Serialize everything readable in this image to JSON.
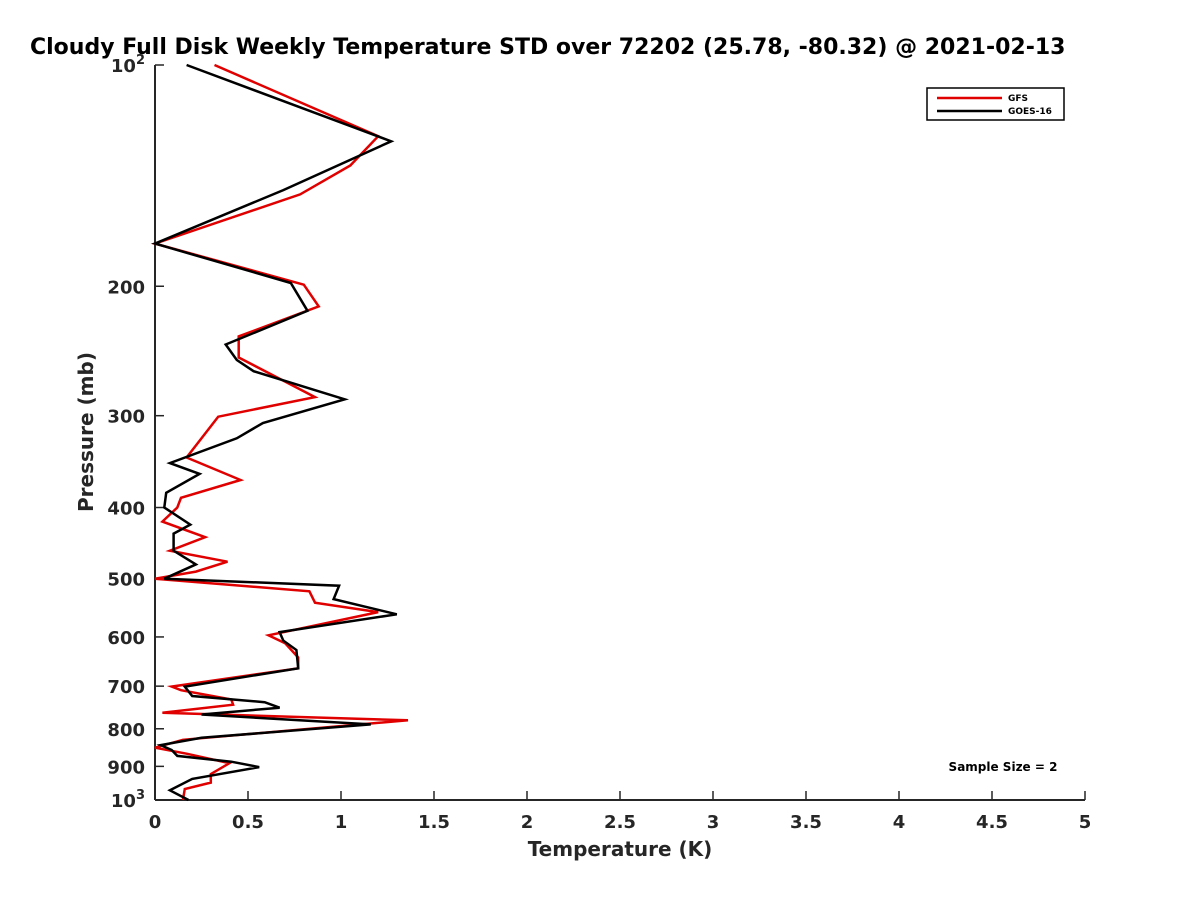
{
  "chart_data": {
    "type": "line",
    "title": "Cloudy Full Disk Weekly Temperature STD over 72202 (25.78, -80.32) @ 2021-02-13",
    "xlabel": "Temperature (K)",
    "ylabel": "Pressure (mb)",
    "xlim": [
      0,
      5
    ],
    "ylim": [
      100,
      1000
    ],
    "y_scale": "log",
    "y_reversed": true,
    "x_ticks": [
      "0",
      "0.5",
      "1",
      "1.5",
      "2",
      "2.5",
      "3",
      "3.5",
      "4",
      "4.5",
      "5"
    ],
    "y_ticks": [
      {
        "value": 100,
        "base": "10",
        "exp": "2"
      },
      {
        "value": 200,
        "label": "200"
      },
      {
        "value": 300,
        "label": "300"
      },
      {
        "value": 400,
        "label": "400"
      },
      {
        "value": 500,
        "label": "500"
      },
      {
        "value": 600,
        "label": "600"
      },
      {
        "value": 700,
        "label": "700"
      },
      {
        "value": 800,
        "label": "800"
      },
      {
        "value": 900,
        "label": "900"
      },
      {
        "value": 1000,
        "base": "10",
        "exp": "3"
      }
    ],
    "legend_position": "top-right",
    "annotation": "Sample Size = 2",
    "series": [
      {
        "name": "GFS",
        "color": "#e00000",
        "points": [
          [
            0.32,
            100
          ],
          [
            1.2,
            125
          ],
          [
            1.05,
            137
          ],
          [
            0.78,
            150
          ],
          [
            0.0,
            175
          ],
          [
            0.8,
            199
          ],
          [
            0.88,
            213
          ],
          [
            0.45,
            234
          ],
          [
            0.45,
            250
          ],
          [
            0.86,
            283
          ],
          [
            0.34,
            301
          ],
          [
            0.17,
            342
          ],
          [
            0.46,
            367
          ],
          [
            0.14,
            388
          ],
          [
            0.12,
            400
          ],
          [
            0.04,
            418
          ],
          [
            0.27,
            439
          ],
          [
            0.08,
            458
          ],
          [
            0.39,
            474
          ],
          [
            0.22,
            489
          ],
          [
            0.0,
            500
          ],
          [
            0.83,
            520
          ],
          [
            0.86,
            539
          ],
          [
            1.2,
            555
          ],
          [
            0.61,
            597
          ],
          [
            0.7,
            612
          ],
          [
            0.77,
            640
          ],
          [
            0.77,
            662
          ],
          [
            0.09,
            701
          ],
          [
            0.14,
            709
          ],
          [
            0.41,
            730
          ],
          [
            0.42,
            742
          ],
          [
            0.04,
            761
          ],
          [
            1.36,
            779
          ],
          [
            0.15,
            828
          ],
          [
            0.0,
            849
          ],
          [
            0.17,
            865
          ],
          [
            0.4,
            891
          ],
          [
            0.3,
            922
          ],
          [
            0.3,
            947
          ],
          [
            0.16,
            966
          ],
          [
            0.15,
            1000
          ]
        ]
      },
      {
        "name": "GOES-16",
        "color": "#000000",
        "points": [
          [
            0.17,
            100
          ],
          [
            1.27,
            127
          ],
          [
            0.69,
            148
          ],
          [
            0.0,
            175
          ],
          [
            0.73,
            198
          ],
          [
            0.82,
            216
          ],
          [
            0.38,
            240
          ],
          [
            0.44,
            252
          ],
          [
            0.53,
            261
          ],
          [
            1.02,
            285
          ],
          [
            0.58,
            307
          ],
          [
            0.44,
            322
          ],
          [
            0.08,
            348
          ],
          [
            0.24,
            360
          ],
          [
            0.06,
            382
          ],
          [
            0.05,
            400
          ],
          [
            0.19,
            422
          ],
          [
            0.1,
            434
          ],
          [
            0.1,
            458
          ],
          [
            0.22,
            478
          ],
          [
            0.05,
            500
          ],
          [
            0.99,
            511
          ],
          [
            0.96,
            533
          ],
          [
            1.3,
            559
          ],
          [
            0.67,
            591
          ],
          [
            0.69,
            607
          ],
          [
            0.76,
            625
          ],
          [
            0.77,
            662
          ],
          [
            0.16,
            701
          ],
          [
            0.2,
            722
          ],
          [
            0.59,
            736
          ],
          [
            0.67,
            749
          ],
          [
            0.25,
            765
          ],
          [
            1.16,
            789
          ],
          [
            0.25,
            823
          ],
          [
            0.03,
            842
          ],
          [
            0.09,
            855
          ],
          [
            0.12,
            871
          ],
          [
            0.41,
            887
          ],
          [
            0.56,
            902
          ],
          [
            0.2,
            936
          ],
          [
            0.08,
            970
          ],
          [
            0.18,
            1000
          ]
        ]
      }
    ]
  }
}
